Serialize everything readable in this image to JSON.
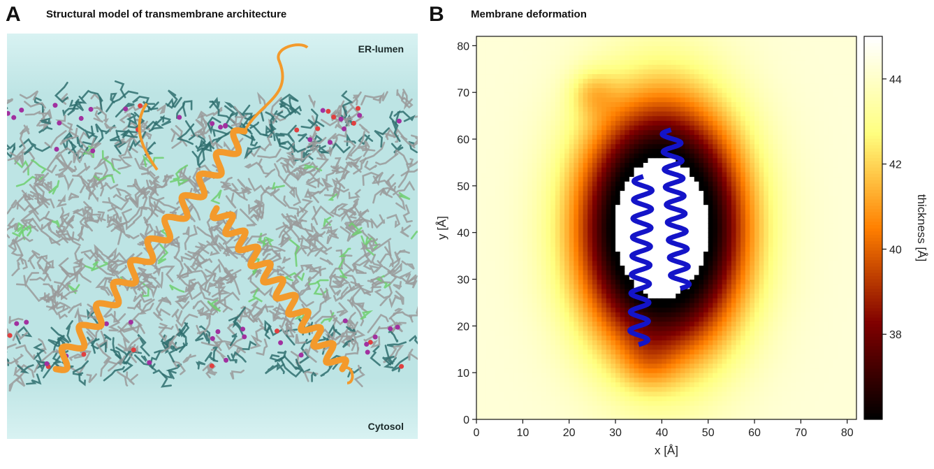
{
  "panel_a": {
    "letter": "A",
    "title": "Structural model of transmembrane architecture",
    "top_label": "ER-lumen",
    "bottom_label": "Cytosol",
    "colors": {
      "water": "#cfeeee",
      "lipid_tails": "#9a9a9a",
      "headgroups": "#2f6f6f",
      "phosphate": "#a1309f",
      "protein": "#f39a2c",
      "cholesterol": "#6fcf6f"
    }
  },
  "panel_b": {
    "letter": "B",
    "title": "Membrane deformation",
    "protein_color": "#1414c8"
  },
  "chart_data": {
    "type": "heatmap",
    "title": "Membrane deformation",
    "xlabel": "x [Å]",
    "ylabel": "y [Å]",
    "colorbar_label": "thickness [Å]",
    "xlim": [
      0,
      82
    ],
    "ylim": [
      0,
      82
    ],
    "xticks": [
      0,
      10,
      20,
      30,
      40,
      50,
      60,
      70,
      80
    ],
    "yticks": [
      0,
      10,
      20,
      30,
      40,
      50,
      60,
      70,
      80
    ],
    "colorbar_range": [
      36,
      45
    ],
    "colorbar_ticks": [
      38,
      40,
      42,
      44
    ],
    "colormap": "afmhot",
    "excluded_region": {
      "center_x": 40,
      "center_y": 41,
      "radius_x": 10,
      "radius_y": 15
    },
    "grid": false
  }
}
